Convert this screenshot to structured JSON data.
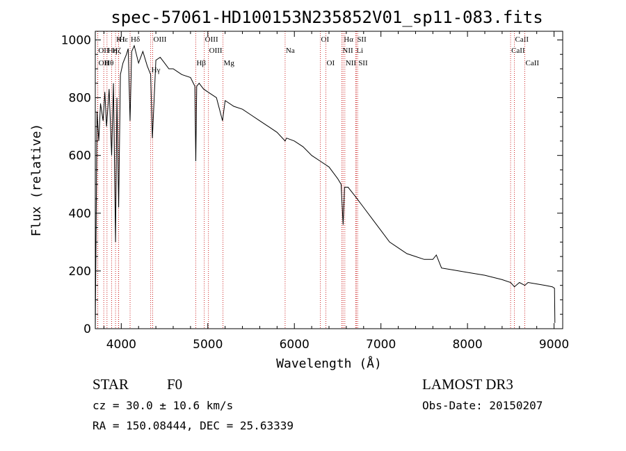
{
  "chart_data": {
    "type": "line",
    "title": "spec-57061-HD100153N235852V01_sp11-083.fits",
    "xlabel": "Wavelength (Å)",
    "ylabel": "Flux (relative)",
    "xlim": [
      3700,
      9100
    ],
    "ylim": [
      0,
      1030
    ],
    "grid": false,
    "x_ticks": [
      "4000",
      "5000",
      "6000",
      "7000",
      "8000",
      "9000"
    ],
    "y_ticks": [
      "0",
      "200",
      "400",
      "600",
      "800",
      "1000"
    ],
    "series": [
      {
        "name": "spectrum",
        "x": [
          3700,
          3720,
          3740,
          3760,
          3790,
          3810,
          3830,
          3860,
          3889,
          3910,
          3934,
          3950,
          3970,
          3990,
          4020,
          4060,
          4080,
          4102,
          4120,
          4150,
          4200,
          4250,
          4300,
          4340,
          4360,
          4400,
          4450,
          4500,
          4550,
          4600,
          4700,
          4800,
          4850,
          4861,
          4872,
          4900,
          4950,
          5000,
          5100,
          5170,
          5200,
          5300,
          5400,
          5500,
          5600,
          5700,
          5800,
          5893,
          5910,
          6000,
          6100,
          6200,
          6300,
          6400,
          6450,
          6500,
          6540,
          6563,
          6580,
          6620,
          6700,
          6800,
          6900,
          7000,
          7100,
          7200,
          7300,
          7400,
          7500,
          7600,
          7640,
          7700,
          7800,
          8000,
          8200,
          8400,
          8498,
          8542,
          8600,
          8662,
          8700,
          8800,
          8900,
          8980,
          9005,
          9010
        ],
        "y": [
          0,
          750,
          650,
          780,
          720,
          820,
          700,
          830,
          600,
          850,
          300,
          800,
          420,
          880,
          920,
          950,
          970,
          720,
          960,
          980,
          920,
          960,
          910,
          880,
          660,
          930,
          940,
          920,
          900,
          900,
          880,
          870,
          840,
          580,
          840,
          850,
          830,
          820,
          800,
          720,
          790,
          770,
          760,
          740,
          720,
          700,
          680,
          650,
          660,
          650,
          630,
          600,
          580,
          560,
          540,
          520,
          500,
          360,
          490,
          490,
          460,
          420,
          380,
          340,
          300,
          280,
          260,
          250,
          240,
          240,
          255,
          210,
          205,
          195,
          185,
          170,
          160,
          145,
          160,
          150,
          160,
          155,
          150,
          145,
          140,
          20
        ]
      }
    ],
    "lines": [
      {
        "name": "Hε",
        "x": 3970,
        "row": 1
      },
      {
        "name": "K",
        "x": 3934,
        "row": 1
      },
      {
        "name": "H",
        "x": 3968,
        "row": 1
      },
      {
        "name": "Hδ",
        "x": 4102,
        "row": 1
      },
      {
        "name": "OIII",
        "x": 4363,
        "row": 1
      },
      {
        "name": "OIII",
        "x": 4959,
        "row": 1
      },
      {
        "name": "OI",
        "x": 6300,
        "row": 1
      },
      {
        "name": "Hα",
        "x": 6563,
        "row": 1
      },
      {
        "name": "SII",
        "x": 6716,
        "row": 1
      },
      {
        "name": "CaII",
        "x": 8542,
        "row": 1
      },
      {
        "name": "OII",
        "x": 3727,
        "row": 2
      },
      {
        "name": "Hη",
        "x": 3835,
        "row": 2
      },
      {
        "name": "Hζ",
        "x": 3889,
        "row": 2
      },
      {
        "name": "OIII",
        "x": 5007,
        "row": 2
      },
      {
        "name": "Na",
        "x": 5893,
        "row": 2
      },
      {
        "name": "NII",
        "x": 6548,
        "row": 2
      },
      {
        "name": "Li",
        "x": 6708,
        "row": 2
      },
      {
        "name": "CaII",
        "x": 8498,
        "row": 2
      },
      {
        "name": "OII",
        "x": 3729,
        "row": 3
      },
      {
        "name": "Hθ",
        "x": 3798,
        "row": 3
      },
      {
        "name": "Hβ",
        "x": 4861,
        "row": 3
      },
      {
        "name": "Mg",
        "x": 5175,
        "row": 3
      },
      {
        "name": "OI",
        "x": 6364,
        "row": 3
      },
      {
        "name": "NII",
        "x": 6583,
        "row": 3
      },
      {
        "name": "SII",
        "x": 6731,
        "row": 3
      },
      {
        "name": "CaII",
        "x": 8662,
        "row": 3
      },
      {
        "name": "Hγ",
        "x": 4340,
        "row": 0
      }
    ]
  },
  "info": {
    "object_class": "STAR",
    "subclass": "F0",
    "survey": "LAMOST DR3",
    "redshift": "cz = 30.0 ± 10.6 km/s",
    "obs_date": "Obs-Date: 20150207",
    "coords": "RA = 150.08444, DEC =  25.63339"
  },
  "colors": {
    "line_marker": "#cc2222",
    "spectrum": "#000000",
    "axes": "#000000"
  }
}
